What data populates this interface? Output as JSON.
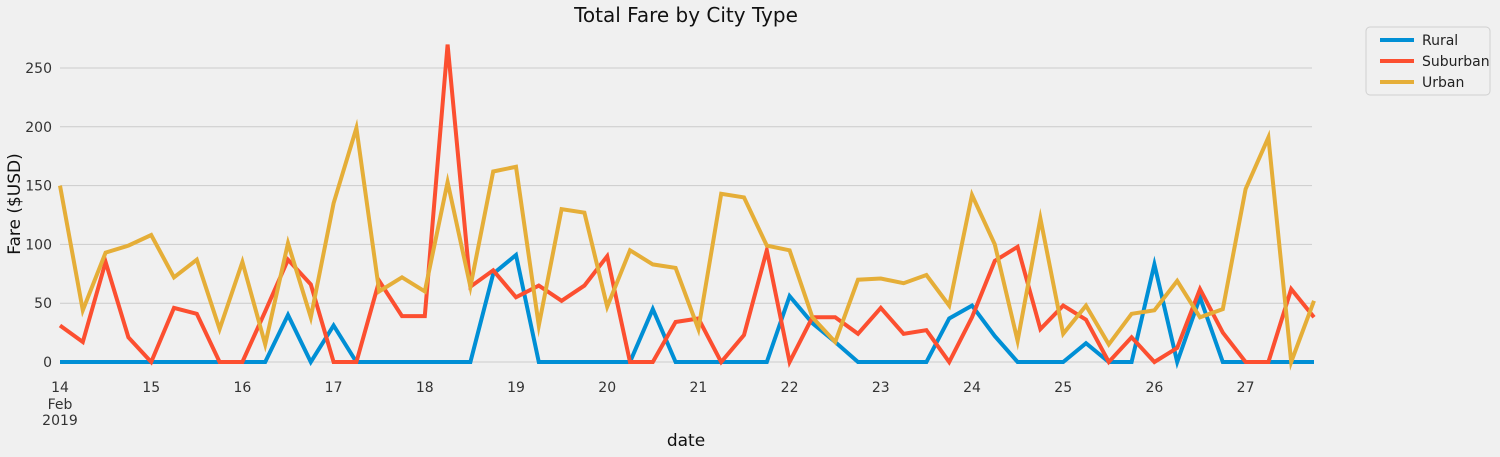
{
  "chart_data": {
    "type": "line",
    "title": "Total Fare by City Type",
    "xlabel": "date",
    "ylabel": "Fare ($USD)",
    "x_tick_labels": [
      "14",
      "15",
      "16",
      "17",
      "18",
      "19",
      "20",
      "21",
      "22",
      "23",
      "24",
      "25",
      "26",
      "27"
    ],
    "x_tick_sublabels": [
      "Feb",
      "2019"
    ],
    "x_start": "2019-02-14",
    "x_step_hours": 6,
    "x_end": "2019-02-27 18:00",
    "ylim": [
      -8,
      280
    ],
    "y_ticks": [
      0,
      50,
      100,
      150,
      200,
      250
    ],
    "grid": "horizontal",
    "legend_position": "outside-top-right",
    "series": [
      {
        "name": "Rural",
        "color": "#008fd5",
        "values": [
          0,
          0,
          0,
          0,
          0,
          0,
          0,
          0,
          0,
          0,
          40,
          0,
          31,
          0,
          0,
          0,
          0,
          0,
          0,
          75,
          91,
          0,
          0,
          0,
          0,
          0,
          45,
          0,
          0,
          0,
          0,
          0,
          56,
          33,
          17,
          0,
          0,
          0,
          0,
          37,
          48,
          22,
          0,
          0,
          0,
          16,
          0,
          0,
          83,
          0,
          55,
          0,
          0,
          0,
          0,
          0
        ]
      },
      {
        "name": "Suburban",
        "color": "#fc4f30",
        "values": [
          31,
          17,
          85,
          21,
          0,
          46,
          41,
          0,
          0,
          43,
          87,
          66,
          0,
          0,
          69,
          39,
          39,
          270,
          64,
          78,
          55,
          65,
          52,
          65,
          90,
          0,
          0,
          34,
          37,
          0,
          23,
          95,
          0,
          38,
          38,
          24,
          46,
          24,
          27,
          0,
          38,
          86,
          98,
          28,
          48,
          36,
          0,
          21,
          0,
          12,
          62,
          25,
          0,
          0,
          62,
          38
        ]
      },
      {
        "name": "Urban",
        "color": "#e5ae38",
        "values": [
          150,
          44,
          93,
          99,
          108,
          72,
          87,
          28,
          85,
          15,
          101,
          38,
          135,
          199,
          60,
          72,
          60,
          153,
          64,
          162,
          166,
          31,
          130,
          127,
          47,
          95,
          83,
          80,
          28,
          143,
          140,
          99,
          95,
          38,
          17,
          70,
          71,
          67,
          74,
          48,
          142,
          100,
          18,
          122,
          24,
          48,
          15,
          41,
          44,
          69,
          38,
          45,
          147,
          191,
          0,
          52
        ]
      }
    ]
  }
}
